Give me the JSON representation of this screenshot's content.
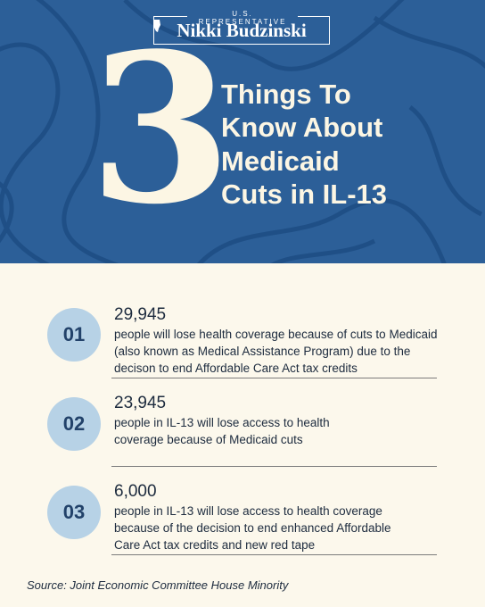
{
  "header": {
    "label": "U.S. REPRESENTATIVE",
    "name_first": "Nikki",
    "name_last": "Budzinski"
  },
  "hero": {
    "number": "3",
    "title_lines": [
      "Things To",
      "Know About",
      "Medicaid",
      "Cuts in IL-13"
    ]
  },
  "items": [
    {
      "index": "01",
      "figure": "29,945",
      "lines": [
        "people will lose health coverage because of cuts to Medicaid",
        "(also known as Medical Assistance Program) due to the",
        "decison to end Affordable Care Act tax credits"
      ]
    },
    {
      "index": "02",
      "figure": "23,945",
      "lines": [
        "people in IL-13 will lose access to health",
        "coverage because of Medicaid cuts"
      ]
    },
    {
      "index": "03",
      "figure": "6,000",
      "lines": [
        "people in IL-13 will lose access to health coverage",
        "because of the decision to end enhanced Affordable",
        "Care Act tax credits and new red tape"
      ]
    }
  ],
  "source": "Source: Joint Economic Committee House Minority"
}
